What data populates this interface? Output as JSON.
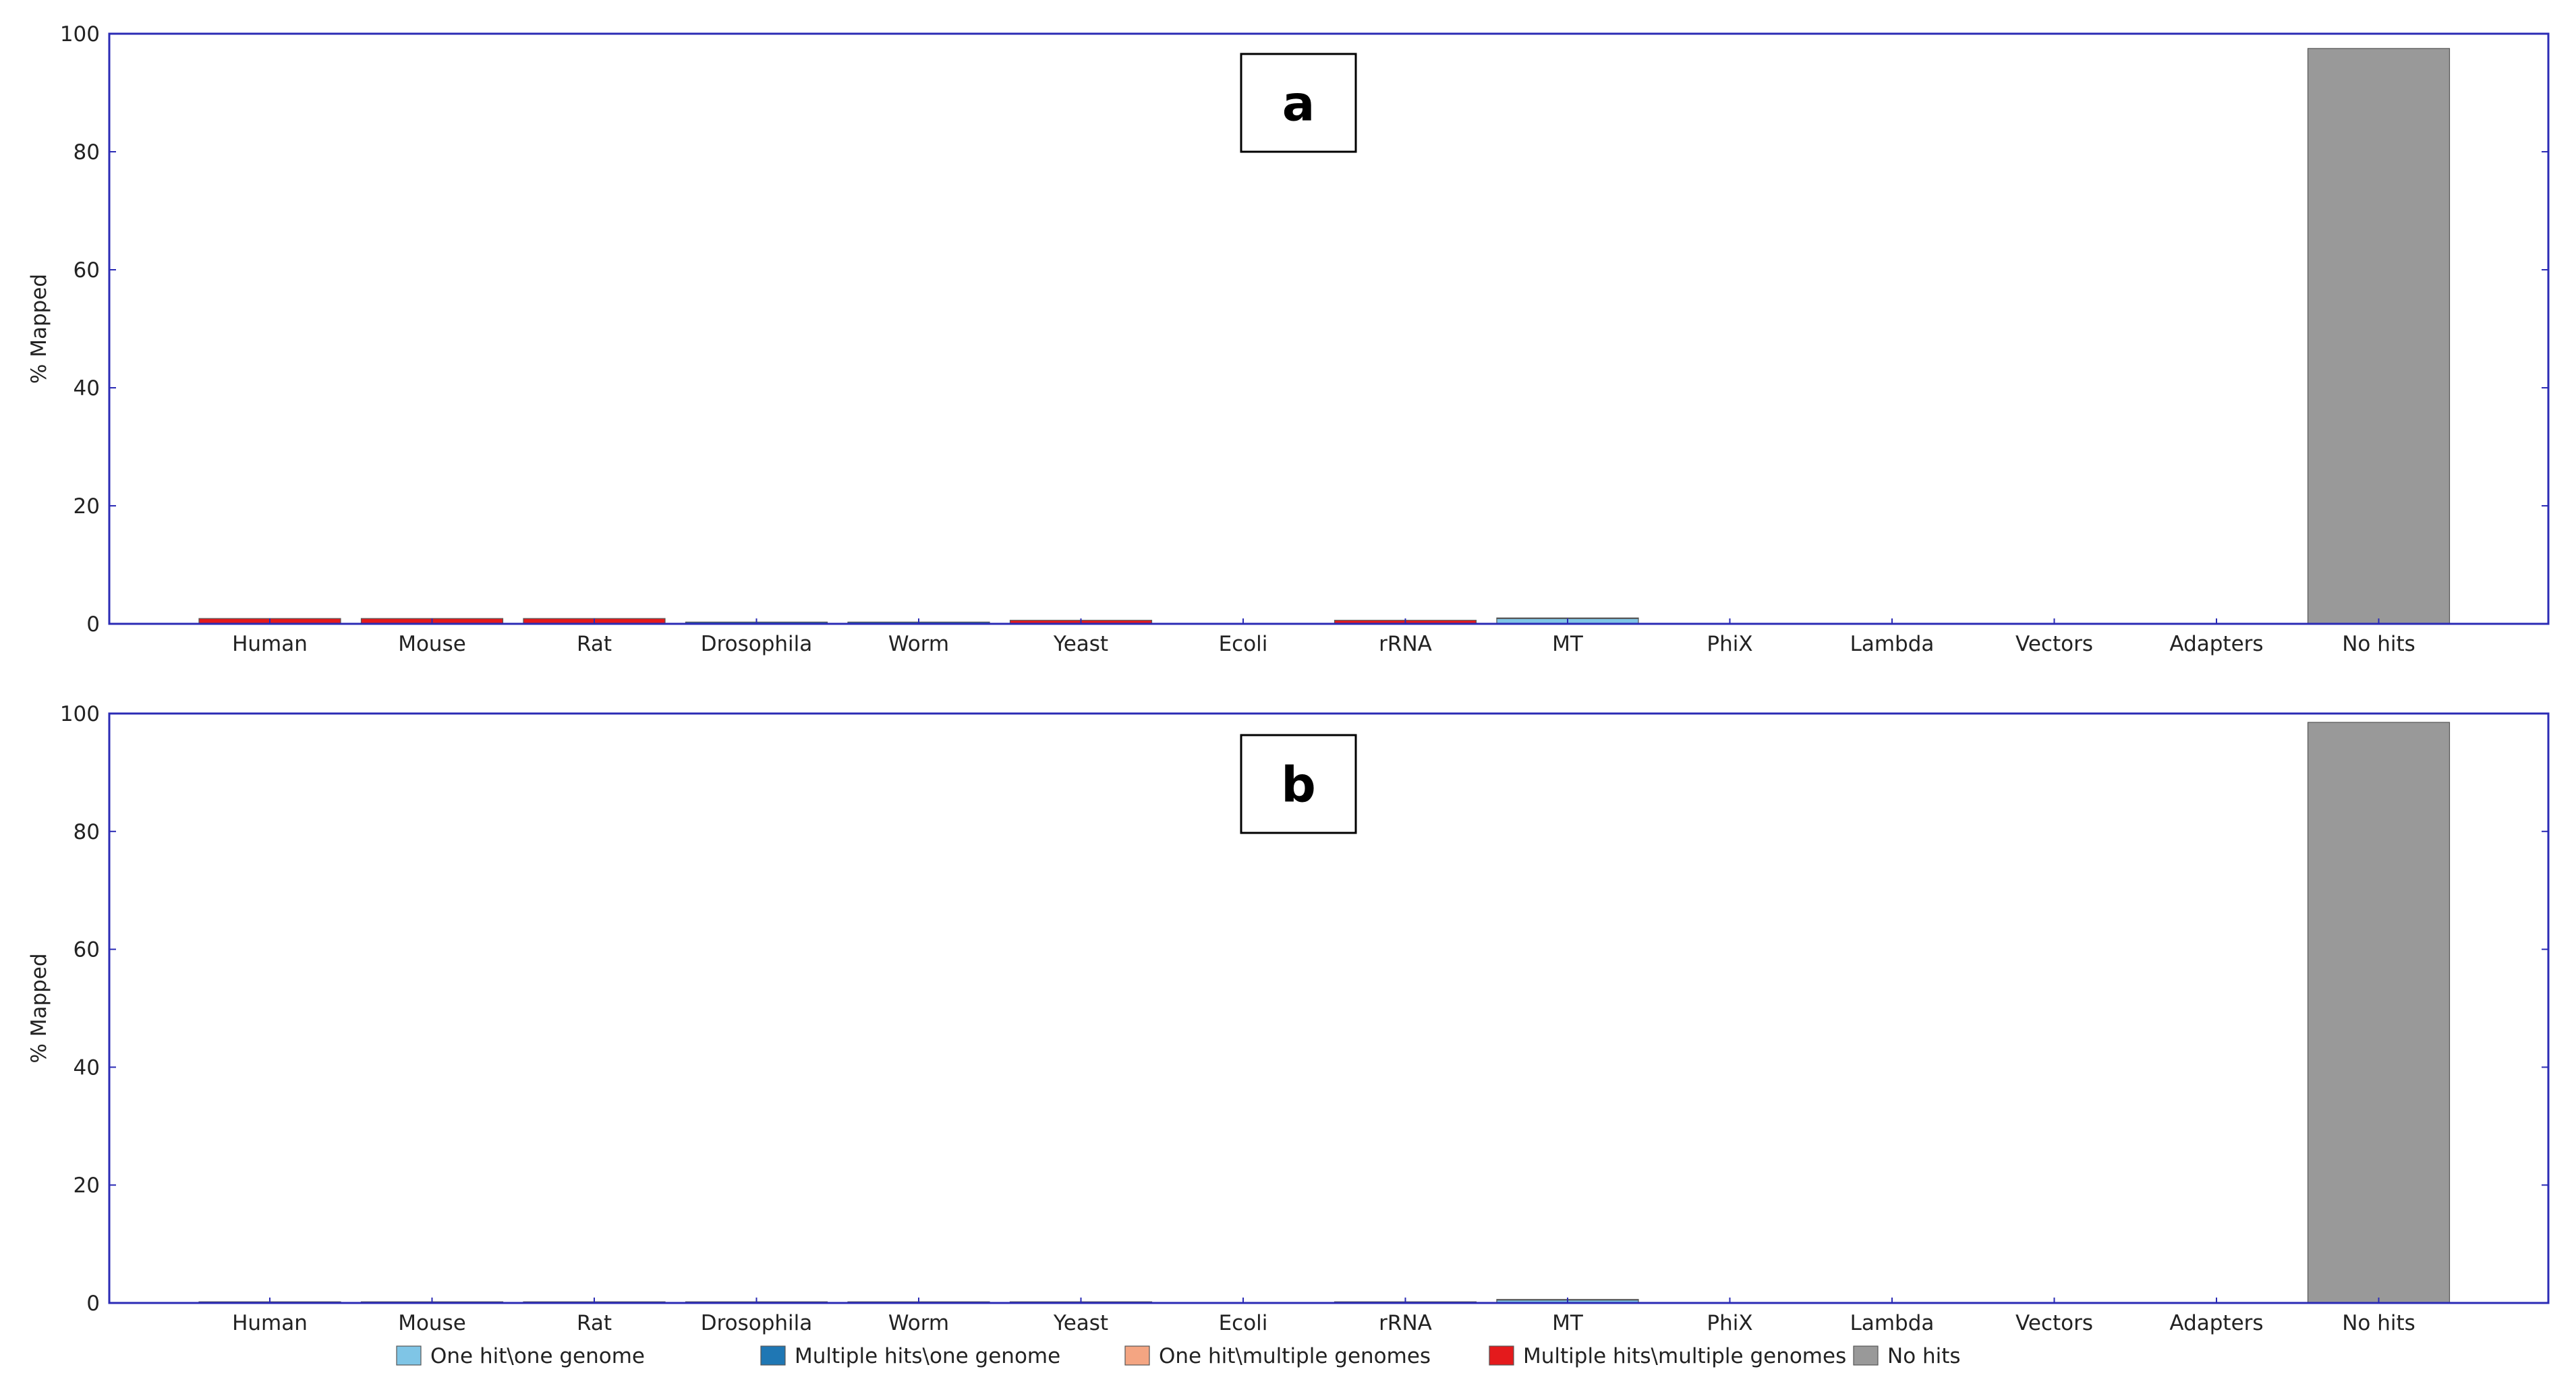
{
  "chart_data": [
    {
      "type": "bar",
      "stacked": true,
      "panel_label": "a",
      "ylabel": "% Mapped",
      "ylim": [
        0,
        100
      ],
      "yticks": [
        0,
        20,
        40,
        60,
        80,
        100
      ],
      "categories": [
        "Human",
        "Mouse",
        "Rat",
        "Drosophila",
        "Worm",
        "Yeast",
        "Ecoli",
        "rRNA",
        "MT",
        "PhiX",
        "Lambda",
        "Vectors",
        "Adapters",
        "No hits"
      ],
      "series": [
        {
          "name": "One hit\\one genome",
          "color": "#7fc5e6",
          "values": [
            0,
            0,
            0,
            0,
            0,
            0,
            0,
            0,
            0.9,
            0,
            0,
            0,
            0,
            0
          ]
        },
        {
          "name": "Multiple hits\\one genome",
          "color": "#1f77b4",
          "values": [
            0.1,
            0.1,
            0.1,
            0.3,
            0.3,
            0.1,
            0,
            0.1,
            0.1,
            0,
            0,
            0,
            0,
            0
          ]
        },
        {
          "name": "One hit\\multiple genomes",
          "color": "#f4a582",
          "values": [
            0,
            0,
            0,
            0,
            0,
            0,
            0,
            0,
            0,
            0,
            0,
            0,
            0,
            0
          ]
        },
        {
          "name": "Multiple hits\\multiple genomes",
          "color": "#e41a1c",
          "values": [
            0.8,
            0.8,
            0.8,
            0,
            0,
            0.5,
            0,
            0.5,
            0,
            0,
            0,
            0,
            0,
            0
          ]
        },
        {
          "name": "No hits",
          "color": "#999999",
          "values": [
            0,
            0,
            0,
            0,
            0,
            0,
            0,
            0,
            0,
            0,
            0,
            0,
            0,
            97.5
          ]
        }
      ]
    },
    {
      "type": "bar",
      "stacked": true,
      "panel_label": "b",
      "ylabel": "% Mapped",
      "ylim": [
        0,
        100
      ],
      "yticks": [
        0,
        20,
        40,
        60,
        80,
        100
      ],
      "categories": [
        "Human",
        "Mouse",
        "Rat",
        "Drosophila",
        "Worm",
        "Yeast",
        "Ecoli",
        "rRNA",
        "MT",
        "PhiX",
        "Lambda",
        "Vectors",
        "Adapters",
        "No hits"
      ],
      "series": [
        {
          "name": "One hit\\one genome",
          "color": "#7fc5e6",
          "values": [
            0,
            0,
            0,
            0,
            0,
            0,
            0,
            0,
            0.5,
            0,
            0,
            0,
            0,
            0
          ]
        },
        {
          "name": "Multiple hits\\one genome",
          "color": "#1f77b4",
          "values": [
            0.2,
            0.2,
            0.2,
            0.2,
            0.2,
            0.2,
            0,
            0.2,
            0.1,
            0,
            0,
            0,
            0,
            0
          ]
        },
        {
          "name": "One hit\\multiple genomes",
          "color": "#f4a582",
          "values": [
            0,
            0,
            0,
            0,
            0,
            0,
            0,
            0,
            0,
            0,
            0,
            0,
            0,
            0
          ]
        },
        {
          "name": "Multiple hits\\multiple genomes",
          "color": "#e41a1c",
          "values": [
            0,
            0,
            0,
            0,
            0,
            0,
            0,
            0,
            0,
            0,
            0,
            0,
            0,
            0
          ]
        },
        {
          "name": "No hits",
          "color": "#999999",
          "values": [
            0,
            0,
            0,
            0,
            0,
            0,
            0,
            0,
            0,
            0,
            0,
            0,
            0,
            98.5
          ]
        }
      ]
    }
  ],
  "legend": [
    {
      "label": "One hit\\one genome",
      "color": "#7fc5e6"
    },
    {
      "label": "Multiple hits\\one genome",
      "color": "#1f77b4"
    },
    {
      "label": "One hit\\multiple genomes",
      "color": "#f4a582"
    },
    {
      "label": "Multiple hits\\multiple genomes",
      "color": "#e41a1c"
    },
    {
      "label": "No hits",
      "color": "#999999"
    }
  ],
  "colors": {
    "axis_frame": "#2b2bb5",
    "text": "#222222"
  }
}
